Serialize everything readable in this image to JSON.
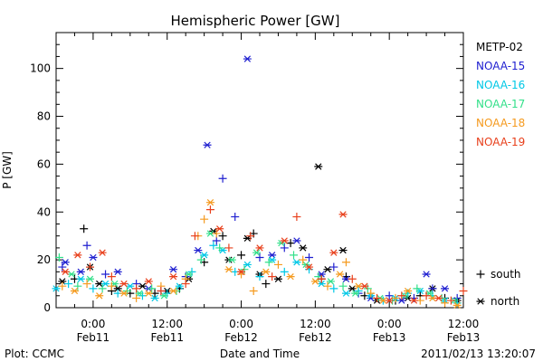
{
  "chart_data": {
    "type": "scatter",
    "title": "Hemispheric Power [GW]",
    "xlabel": "Date and Time",
    "ylabel": "P [GW]",
    "xlim": [
      -6,
      60
    ],
    "ylim": [
      0,
      115
    ],
    "yticks": [
      0,
      20,
      40,
      60,
      80,
      100
    ],
    "xticks": [
      {
        "x": 0,
        "line1": "0:00",
        "line2": "Feb11"
      },
      {
        "x": 12,
        "line1": "12:00",
        "line2": "Feb11"
      },
      {
        "x": 24,
        "line1": "0:00",
        "line2": "Feb12"
      },
      {
        "x": 36,
        "line1": "12:00",
        "line2": "Feb12"
      },
      {
        "x": 48,
        "line1": "0:00",
        "line2": "Feb13"
      },
      {
        "x": 60,
        "line1": "12:00",
        "line2": "Feb13"
      }
    ],
    "series": [
      {
        "name": "METP-02",
        "color": "#000000",
        "points": [
          [
            -5,
            11,
            "n"
          ],
          [
            -3,
            12,
            "s"
          ],
          [
            -1.5,
            33,
            "s"
          ],
          [
            -0.5,
            17,
            "n"
          ],
          [
            1,
            10,
            "n"
          ],
          [
            3,
            7,
            "s"
          ],
          [
            4,
            8,
            "n"
          ],
          [
            6,
            6,
            "s"
          ],
          [
            8,
            9,
            "n"
          ],
          [
            10,
            6,
            "s"
          ],
          [
            12,
            7,
            "n"
          ],
          [
            14,
            8,
            "s"
          ],
          [
            15.5,
            12,
            "n"
          ],
          [
            18,
            19,
            "s"
          ],
          [
            19.5,
            32,
            "n"
          ],
          [
            21,
            30,
            "s"
          ],
          [
            22,
            20,
            "n"
          ],
          [
            24,
            22,
            "s"
          ],
          [
            25,
            29,
            "n"
          ],
          [
            26,
            31,
            "s"
          ],
          [
            27,
            14,
            "n"
          ],
          [
            28,
            10,
            "s"
          ],
          [
            30,
            12,
            "n"
          ],
          [
            32,
            27,
            "s"
          ],
          [
            34,
            25,
            "n"
          ],
          [
            36.5,
            59,
            "n"
          ],
          [
            37,
            12,
            "s"
          ],
          [
            38,
            16,
            "n"
          ],
          [
            40.5,
            24,
            "n"
          ],
          [
            41,
            13,
            "s"
          ],
          [
            42,
            8,
            "n"
          ],
          [
            44,
            5,
            "s"
          ],
          [
            46,
            3,
            "n"
          ],
          [
            49,
            3,
            "s"
          ],
          [
            51,
            4,
            "n"
          ],
          [
            53,
            5,
            "s"
          ],
          [
            55,
            8,
            "n"
          ],
          [
            57,
            4,
            "s"
          ],
          [
            59,
            3,
            "n"
          ]
        ]
      },
      {
        "name": "NOAA-15",
        "color": "#2020d0",
        "points": [
          [
            -5,
            17,
            "s"
          ],
          [
            -4.5,
            19,
            "n"
          ],
          [
            -2,
            15,
            "n"
          ],
          [
            -1,
            26,
            "s"
          ],
          [
            0,
            21,
            "n"
          ],
          [
            2,
            14,
            "s"
          ],
          [
            4,
            15,
            "n"
          ],
          [
            7,
            10,
            "s"
          ],
          [
            9,
            8,
            "n"
          ],
          [
            11,
            7,
            "s"
          ],
          [
            13,
            16,
            "n"
          ],
          [
            15,
            13,
            "s"
          ],
          [
            17,
            24,
            "n"
          ],
          [
            18.5,
            68,
            "n"
          ],
          [
            20,
            28,
            "s"
          ],
          [
            21,
            54,
            "s"
          ],
          [
            23,
            38,
            "s"
          ],
          [
            25,
            104,
            "n"
          ],
          [
            27,
            21,
            "s"
          ],
          [
            29,
            22,
            "n"
          ],
          [
            31,
            25,
            "s"
          ],
          [
            33,
            28,
            "n"
          ],
          [
            35,
            21,
            "s"
          ],
          [
            37,
            14,
            "n"
          ],
          [
            39,
            17,
            "s"
          ],
          [
            41,
            12,
            "n"
          ],
          [
            43,
            6,
            "s"
          ],
          [
            45,
            4,
            "n"
          ],
          [
            48,
            5,
            "s"
          ],
          [
            50,
            3,
            "n"
          ],
          [
            52,
            4,
            "s"
          ],
          [
            54,
            14,
            "n"
          ],
          [
            55,
            8,
            "s"
          ],
          [
            57,
            8,
            "n"
          ],
          [
            59,
            4,
            "s"
          ]
        ]
      },
      {
        "name": "NOAA-16",
        "color": "#00c8e6",
        "points": [
          [
            -6,
            8,
            "n"
          ],
          [
            -4,
            10,
            "s"
          ],
          [
            -2,
            12,
            "n"
          ],
          [
            0,
            8,
            "s"
          ],
          [
            2,
            10,
            "n"
          ],
          [
            4,
            6,
            "s"
          ],
          [
            6,
            9,
            "n"
          ],
          [
            8,
            5,
            "s"
          ],
          [
            10,
            4,
            "n"
          ],
          [
            12,
            6,
            "s"
          ],
          [
            14,
            9,
            "n"
          ],
          [
            16,
            15,
            "s"
          ],
          [
            18,
            22,
            "n"
          ],
          [
            19.5,
            26,
            "s"
          ],
          [
            21,
            24,
            "n"
          ],
          [
            23,
            15,
            "s"
          ],
          [
            25,
            18,
            "n"
          ],
          [
            27,
            13,
            "s"
          ],
          [
            29,
            20,
            "n"
          ],
          [
            31,
            15,
            "s"
          ],
          [
            33,
            19,
            "n"
          ],
          [
            35,
            16,
            "s"
          ],
          [
            37,
            10,
            "n"
          ],
          [
            39,
            8,
            "s"
          ],
          [
            41,
            6,
            "n"
          ],
          [
            43,
            7,
            "s"
          ],
          [
            45,
            5,
            "n"
          ],
          [
            47,
            3,
            "s"
          ],
          [
            49,
            4,
            "n"
          ],
          [
            51,
            6,
            "s"
          ],
          [
            53,
            7,
            "n"
          ],
          [
            55,
            5,
            "s"
          ],
          [
            57,
            3,
            "n"
          ],
          [
            59,
            2,
            "s"
          ]
        ]
      },
      {
        "name": "NOAA-17",
        "color": "#33e08a",
        "points": [
          [
            -5.5,
            21,
            "s"
          ],
          [
            -3.5,
            14,
            "n"
          ],
          [
            -2.5,
            9,
            "s"
          ],
          [
            -0.5,
            12,
            "n"
          ],
          [
            1.5,
            8,
            "s"
          ],
          [
            3.5,
            10,
            "n"
          ],
          [
            5.5,
            7,
            "s"
          ],
          [
            7.5,
            6,
            "n"
          ],
          [
            9.5,
            8,
            "s"
          ],
          [
            11.5,
            5,
            "n"
          ],
          [
            13.5,
            7,
            "s"
          ],
          [
            15.5,
            14,
            "n"
          ],
          [
            17.5,
            20,
            "s"
          ],
          [
            19,
            31,
            "n"
          ],
          [
            20.5,
            25,
            "s"
          ],
          [
            22.5,
            20,
            "n"
          ],
          [
            24.5,
            16,
            "s"
          ],
          [
            26.5,
            23,
            "n"
          ],
          [
            28.5,
            19,
            "s"
          ],
          [
            30.5,
            27,
            "n"
          ],
          [
            32.5,
            22,
            "s"
          ],
          [
            34.5,
            18,
            "n"
          ],
          [
            36.5,
            13,
            "s"
          ],
          [
            38.5,
            11,
            "n"
          ],
          [
            40.5,
            9,
            "s"
          ],
          [
            42.5,
            6,
            "n"
          ],
          [
            44.5,
            8,
            "s"
          ],
          [
            46.5,
            4,
            "n"
          ],
          [
            48.5,
            3,
            "s"
          ],
          [
            50.5,
            5,
            "n"
          ],
          [
            52.5,
            8,
            "s"
          ],
          [
            54.5,
            6,
            "n"
          ],
          [
            56.5,
            4,
            "s"
          ],
          [
            58.5,
            3,
            "n"
          ]
        ]
      },
      {
        "name": "NOAA-18",
        "color": "#f59a1e",
        "points": [
          [
            -5,
            9,
            "s"
          ],
          [
            -3,
            7,
            "n"
          ],
          [
            -1,
            10,
            "s"
          ],
          [
            1,
            5,
            "n"
          ],
          [
            3,
            9,
            "s"
          ],
          [
            5,
            6,
            "n"
          ],
          [
            7,
            4,
            "s"
          ],
          [
            9,
            6,
            "n"
          ],
          [
            11,
            9,
            "s"
          ],
          [
            13,
            7,
            "n"
          ],
          [
            15,
            12,
            "s"
          ],
          [
            17,
            30,
            "s"
          ],
          [
            18,
            37,
            "s"
          ],
          [
            19,
            44,
            "n"
          ],
          [
            20,
            31,
            "s"
          ],
          [
            22,
            16,
            "n"
          ],
          [
            24,
            14,
            "s"
          ],
          [
            26,
            7,
            "s"
          ],
          [
            28,
            15,
            "n"
          ],
          [
            30,
            18,
            "s"
          ],
          [
            32,
            13,
            "n"
          ],
          [
            34,
            20,
            "s"
          ],
          [
            36,
            11,
            "n"
          ],
          [
            38,
            9,
            "s"
          ],
          [
            40,
            14,
            "n"
          ],
          [
            41,
            19,
            "s"
          ],
          [
            43,
            9,
            "n"
          ],
          [
            45,
            6,
            "s"
          ],
          [
            47,
            3,
            "n"
          ],
          [
            49,
            4,
            "s"
          ],
          [
            51,
            7,
            "n"
          ],
          [
            53,
            3,
            "s"
          ],
          [
            55,
            4,
            "n"
          ],
          [
            57,
            2,
            "s"
          ],
          [
            59,
            1,
            "n"
          ]
        ]
      },
      {
        "name": "NOAA-19",
        "color": "#e8401c",
        "points": [
          [
            -4.5,
            15,
            "n"
          ],
          [
            -2.5,
            22,
            "n"
          ],
          [
            -0.5,
            17,
            "s"
          ],
          [
            1.5,
            23,
            "n"
          ],
          [
            3,
            13,
            "s"
          ],
          [
            5,
            10,
            "n"
          ],
          [
            7,
            8,
            "s"
          ],
          [
            9,
            11,
            "n"
          ],
          [
            11,
            7,
            "s"
          ],
          [
            13,
            13,
            "n"
          ],
          [
            15,
            10,
            "s"
          ],
          [
            16.5,
            30,
            "s"
          ],
          [
            19,
            41,
            "s"
          ],
          [
            20.5,
            33,
            "n"
          ],
          [
            22,
            25,
            "s"
          ],
          [
            24,
            15,
            "n"
          ],
          [
            25.5,
            30,
            "s"
          ],
          [
            27,
            25,
            "n"
          ],
          [
            29,
            13,
            "s"
          ],
          [
            31,
            28,
            "n"
          ],
          [
            33,
            38,
            "s"
          ],
          [
            35,
            17,
            "n"
          ],
          [
            37,
            12,
            "s"
          ],
          [
            39,
            23,
            "n"
          ],
          [
            40.5,
            39,
            "n"
          ],
          [
            42,
            12,
            "s"
          ],
          [
            44,
            9,
            "n"
          ],
          [
            46,
            4,
            "s"
          ],
          [
            48,
            3,
            "n"
          ],
          [
            50,
            5,
            "s"
          ],
          [
            52,
            3,
            "n"
          ],
          [
            54,
            5,
            "s"
          ],
          [
            56,
            4,
            "n"
          ],
          [
            58,
            3,
            "s"
          ],
          [
            60,
            7,
            "s"
          ]
        ]
      }
    ],
    "marker_legend": [
      {
        "symbol": "+",
        "label": "south"
      },
      {
        "symbol": "*",
        "label": "north"
      }
    ]
  },
  "footer": {
    "left": "Plot: CCMC",
    "right": "2011/02/13 13:20:07"
  }
}
